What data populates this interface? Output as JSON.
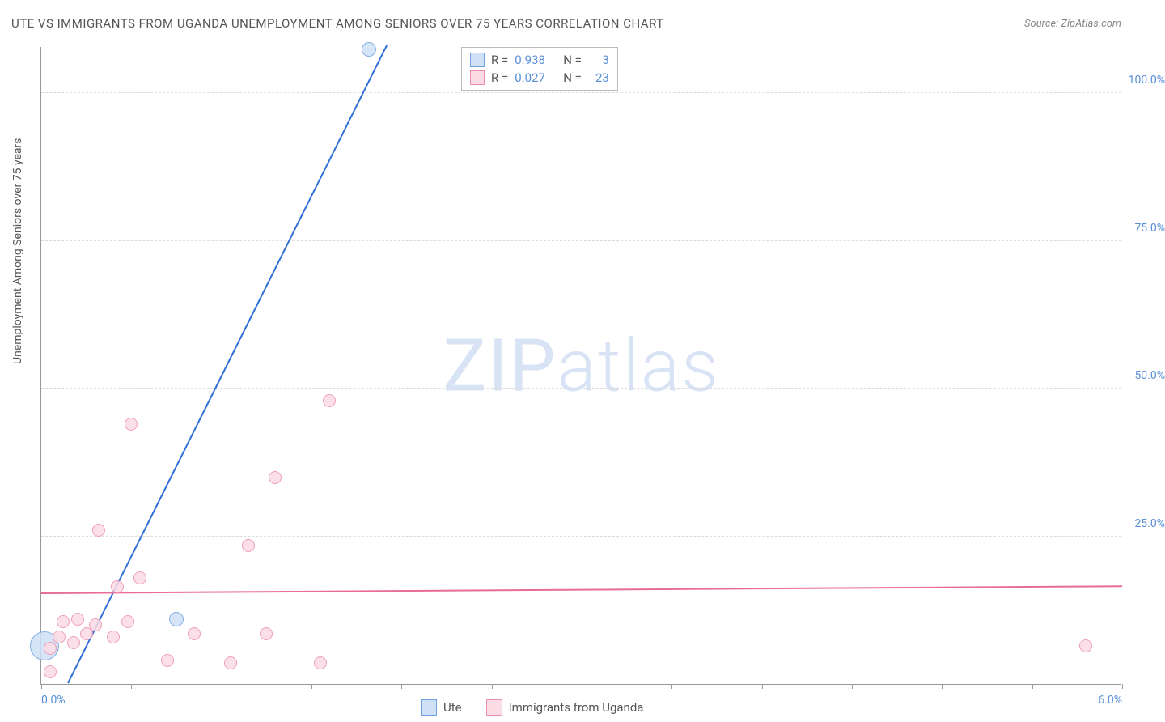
{
  "title": "UTE VS IMMIGRANTS FROM UGANDA UNEMPLOYMENT AMONG SENIORS OVER 75 YEARS CORRELATION CHART",
  "source": "Source: ZipAtlas.com",
  "y_axis_label": "Unemployment Among Seniors over 75 years",
  "watermark_a": "ZIP",
  "watermark_b": "atlas",
  "chart": {
    "type": "scatter",
    "xlim": [
      0.0,
      6.0
    ],
    "ylim": [
      0.0,
      108.0
    ],
    "x_ticks": [
      0.0,
      0.5,
      1.0,
      1.5,
      2.0,
      2.5,
      3.0,
      3.5,
      4.0,
      4.5,
      5.0,
      5.5,
      6.0
    ],
    "x_tick_labels": {
      "0": "0.0%",
      "12": "6.0%"
    },
    "y_gridlines": [
      25.0,
      50.0,
      75.0,
      100.0
    ],
    "y_tick_labels": [
      "25.0%",
      "50.0%",
      "75.0%",
      "100.0%"
    ],
    "background_color": "#ffffff",
    "grid_color": "#dddddd",
    "axis_color": "#999999",
    "series": [
      {
        "name": "Ute",
        "fill": "#cfe0f7",
        "stroke": "#6fa3e0",
        "line_color": "#2e6fd8",
        "trend": {
          "x1": 0.15,
          "y1": 0.0,
          "x2": 1.92,
          "y2": 108.0
        },
        "points": [
          {
            "x": 0.02,
            "y": 6.5,
            "r": 18
          },
          {
            "x": 0.75,
            "y": 11.0,
            "r": 9
          },
          {
            "x": 1.82,
            "y": 107.5,
            "r": 9
          }
        ]
      },
      {
        "name": "Immigrants from Uganda",
        "fill": "#fbdbe4",
        "stroke": "#ec8fb0",
        "line_color": "#e86b9a",
        "trend": {
          "x1": 0.0,
          "y1": 15.2,
          "x2": 6.0,
          "y2": 16.4
        },
        "points": [
          {
            "x": 0.05,
            "y": 2.0,
            "r": 8
          },
          {
            "x": 0.05,
            "y": 6.0,
            "r": 8
          },
          {
            "x": 0.1,
            "y": 8.0,
            "r": 8
          },
          {
            "x": 0.12,
            "y": 10.5,
            "r": 8
          },
          {
            "x": 0.18,
            "y": 7.0,
            "r": 8
          },
          {
            "x": 0.2,
            "y": 11.0,
            "r": 8
          },
          {
            "x": 0.25,
            "y": 8.5,
            "r": 8
          },
          {
            "x": 0.3,
            "y": 10.0,
            "r": 8
          },
          {
            "x": 0.32,
            "y": 26.0,
            "r": 8
          },
          {
            "x": 0.4,
            "y": 8.0,
            "r": 8
          },
          {
            "x": 0.42,
            "y": 16.5,
            "r": 8
          },
          {
            "x": 0.48,
            "y": 10.5,
            "r": 8
          },
          {
            "x": 0.5,
            "y": 44.0,
            "r": 8
          },
          {
            "x": 0.55,
            "y": 18.0,
            "r": 8
          },
          {
            "x": 0.7,
            "y": 4.0,
            "r": 8
          },
          {
            "x": 0.85,
            "y": 8.5,
            "r": 8
          },
          {
            "x": 1.05,
            "y": 3.5,
            "r": 8
          },
          {
            "x": 1.15,
            "y": 23.5,
            "r": 8
          },
          {
            "x": 1.25,
            "y": 8.5,
            "r": 8
          },
          {
            "x": 1.3,
            "y": 35.0,
            "r": 8
          },
          {
            "x": 1.55,
            "y": 3.5,
            "r": 8
          },
          {
            "x": 1.6,
            "y": 48.0,
            "r": 8
          },
          {
            "x": 5.8,
            "y": 6.5,
            "r": 8
          }
        ]
      }
    ],
    "stats": [
      {
        "swatch_fill": "#cfe0f7",
        "swatch_stroke": "#6fa3e0",
        "r_label": "R =",
        "r": "0.938",
        "n_label": "N =",
        "n": "3"
      },
      {
        "swatch_fill": "#fbdbe4",
        "swatch_stroke": "#ec8fb0",
        "r_label": "R =",
        "r": "0.027",
        "n_label": "N =",
        "n": "23"
      }
    ],
    "legend": [
      {
        "swatch_fill": "#cfe0f7",
        "swatch_stroke": "#6fa3e0",
        "label": "Ute"
      },
      {
        "swatch_fill": "#fbdbe4",
        "swatch_stroke": "#ec8fb0",
        "label": "Immigrants from Uganda"
      }
    ]
  }
}
